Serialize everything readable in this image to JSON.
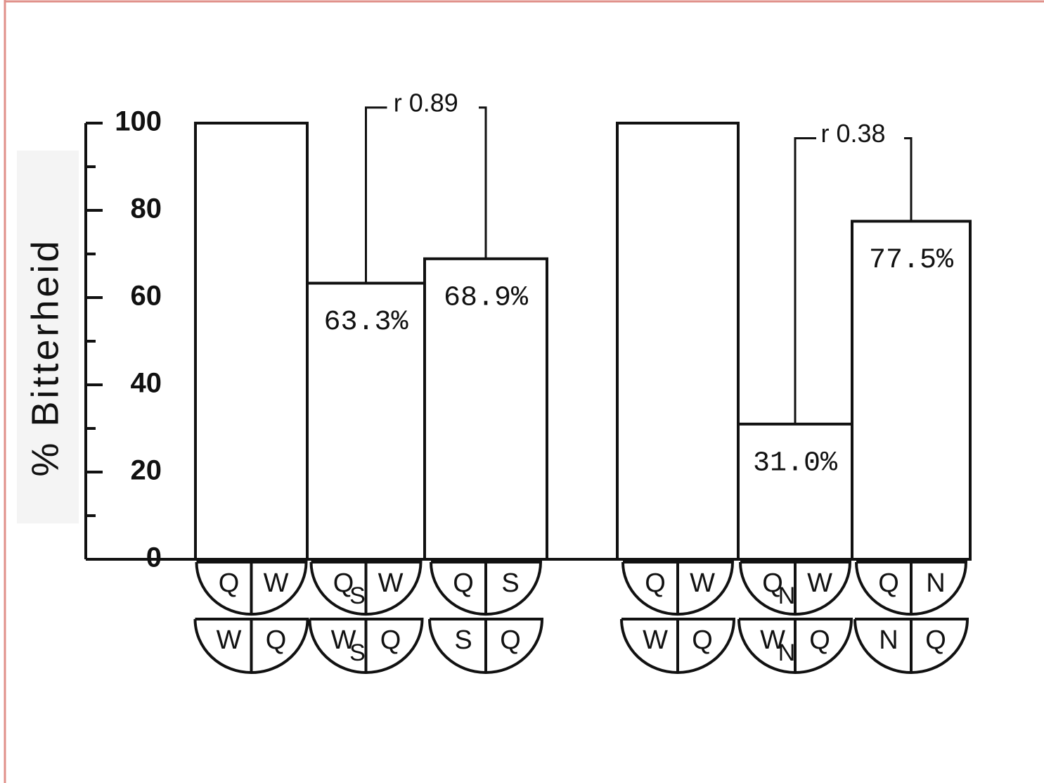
{
  "chart_data": {
    "type": "bar",
    "ylabel": "% Bitterheid",
    "categories": [
      null,
      null,
      null,
      null,
      null,
      null
    ],
    "values": [
      100,
      63.3,
      68.9,
      100,
      31.0,
      77.5
    ],
    "value_labels": [
      null,
      "63.3%",
      "68.9%",
      null,
      "31.0%",
      "77.5%"
    ],
    "color": "#ffffff",
    "ylim": [
      0,
      100
    ],
    "yticks": [
      0,
      20,
      40,
      60,
      80,
      100
    ],
    "yminor": [
      10,
      30,
      50,
      70,
      90
    ],
    "annotations": [
      {
        "text": "r 0.89",
        "bars": [
          1,
          2
        ]
      },
      {
        "text": "r 0.38",
        "bars": [
          4,
          5
        ]
      }
    ],
    "diagrams": [
      {
        "top": {
          "left": "Q",
          "right": "W"
        },
        "bottom": {
          "left": "W",
          "right": "Q"
        }
      },
      {
        "top": {
          "left": "Q",
          "sub": "S",
          "right": "W"
        },
        "bottom": {
          "left": "W",
          "sub": "S",
          "right": "Q"
        }
      },
      {
        "top": {
          "left": "Q",
          "right": "S"
        },
        "bottom": {
          "left": "S",
          "right": "Q"
        }
      },
      {
        "top": {
          "left": "Q",
          "right": "W"
        },
        "bottom": {
          "left": "W",
          "right": "Q"
        }
      },
      {
        "top": {
          "left": "Q",
          "sub": "N",
          "right": "W"
        },
        "bottom": {
          "left": "W",
          "sub": "N",
          "right": "Q"
        }
      },
      {
        "top": {
          "left": "Q",
          "right": "N"
        },
        "bottom": {
          "left": "N",
          "right": "Q"
        }
      }
    ]
  }
}
